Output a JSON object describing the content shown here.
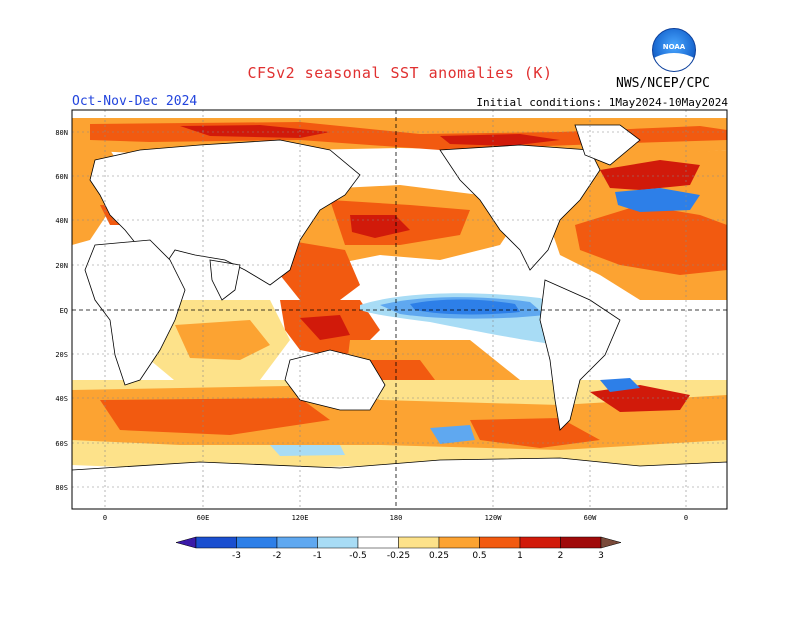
{
  "title": "CFSv2 seasonal SST anomalies (K)",
  "season": "Oct-Nov-Dec 2024",
  "initial_conditions": "Initial conditions: 1May2024-10May2024",
  "agency": "NWS/NCEP/CPC",
  "logo_text": "NOAA",
  "lat_labels": [
    "80N",
    "60N",
    "40N",
    "20N",
    "EQ",
    "20S",
    "40S",
    "60S",
    "80S"
  ],
  "lon_labels": [
    "0",
    "60E",
    "120E",
    "180",
    "120W",
    "60W",
    "0"
  ],
  "colorbar": {
    "levels": [
      "-3",
      "-2",
      "-1",
      "-0.5",
      "-0.25",
      "0.25",
      "0.5",
      "1",
      "2",
      "3"
    ],
    "colors": [
      "#3a1aa8",
      "#1a4fd0",
      "#2d7fe8",
      "#5fa8f0",
      "#a8dcf5",
      "#ffffff",
      "#fde28a",
      "#fca332",
      "#f25a10",
      "#d11a0a",
      "#a00a0a",
      "#7a4a3a"
    ]
  }
}
